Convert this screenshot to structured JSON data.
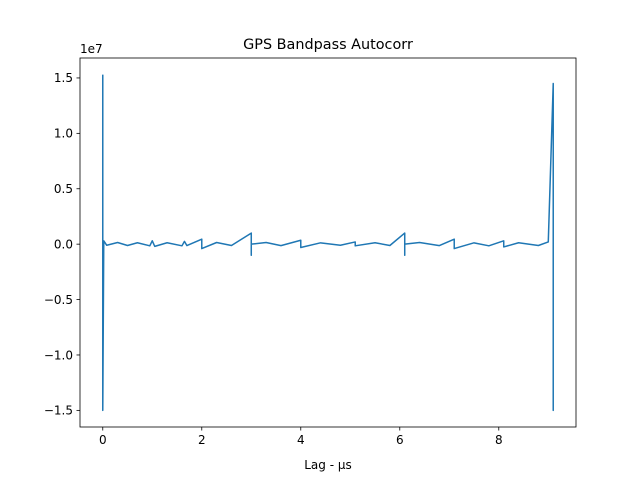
{
  "chart_data": {
    "type": "line",
    "title": "GPS Bandpass Autocorr",
    "xlabel": "Lag - μs",
    "ylabel": "",
    "y_offset_label": "1e7",
    "xlim": [
      -0.46,
      9.56
    ],
    "ylim": [
      -16500000.0,
      16800000.0
    ],
    "x_ticks": [
      0,
      2,
      4,
      6,
      8
    ],
    "x_tick_labels": [
      "0",
      "2",
      "4",
      "6",
      "8"
    ],
    "y_ticks": [
      -15000000.0,
      -10000000.0,
      -5000000.0,
      0,
      5000000.0,
      10000000.0,
      15000000.0
    ],
    "y_tick_labels": [
      "−1.5",
      "−1.0",
      "−0.5",
      "0.0",
      "0.5",
      "1.0",
      "1.5"
    ],
    "grid": false,
    "line_color": "#1f77b4",
    "series": [
      {
        "x": [
          0.0,
          0.0,
          0.02,
          0.08,
          0.3,
          0.5,
          0.7,
          0.95,
          1.0,
          1.05,
          1.3,
          1.6,
          1.65,
          1.7,
          2.0,
          2.0,
          2.3,
          2.6,
          3.0,
          3.0,
          3.0,
          3.3,
          3.6,
          4.0,
          4.0,
          4.4,
          4.8,
          5.1,
          5.1,
          5.5,
          5.8,
          6.1,
          6.1,
          6.1,
          6.4,
          6.8,
          7.1,
          7.1,
          7.5,
          7.8,
          8.1,
          8.1,
          8.4,
          8.8,
          9.0,
          9.1,
          9.1,
          9.1,
          9.1
        ],
        "y": [
          15300000.0,
          -15000000.0,
          300000,
          -100000,
          150000,
          -120000,
          130000,
          -150000,
          300000,
          -200000,
          130000,
          -150000,
          250000,
          -130000,
          450000,
          -400000,
          150000,
          -120000,
          1000000.0,
          -1000000.0,
          0,
          150000,
          -130000,
          350000,
          -300000,
          120000,
          -100000,
          200000,
          -150000,
          130000,
          -120000,
          1000000.0,
          -1000000.0,
          0,
          150000,
          -130000,
          450000,
          -400000,
          120000,
          -150000,
          300000,
          -250000,
          130000,
          -120000,
          200000,
          14500000.0,
          -15000000.0,
          4200000.0,
          0
        ]
      }
    ]
  }
}
